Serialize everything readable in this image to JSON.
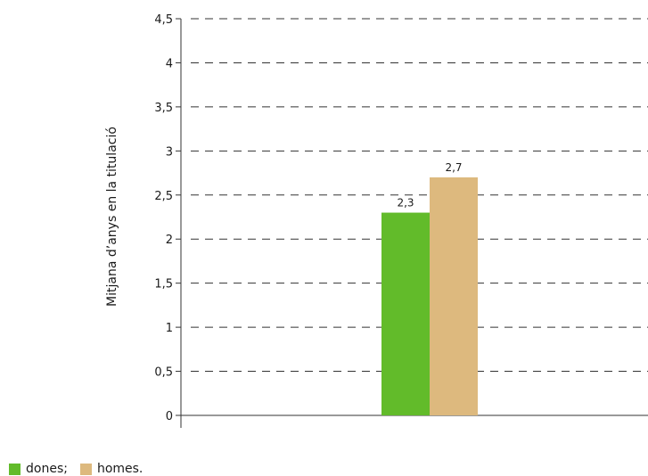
{
  "chart_data": {
    "type": "bar",
    "categories": [
      ""
    ],
    "series": [
      {
        "name": "dones;",
        "values": [
          2.3
        ],
        "value_labels": [
          "2,3"
        ],
        "color": "#62bb2a"
      },
      {
        "name": "homes.",
        "values": [
          2.7
        ],
        "value_labels": [
          "2,7"
        ],
        "color": "#ddb97e"
      }
    ],
    "ylabel": "Mitjana d’anys en la titulació",
    "ylim": [
      0,
      4.5
    ],
    "yticks": [
      0,
      0.5,
      1,
      1.5,
      2,
      2.5,
      3,
      3.5,
      4,
      4.5
    ],
    "ytick_labels": [
      "0",
      "0,5",
      "1",
      "1,5",
      "2",
      "2,5",
      "3",
      "3,5",
      "4",
      "4,5"
    ],
    "grid": true,
    "legend_position": "bottom-left"
  }
}
